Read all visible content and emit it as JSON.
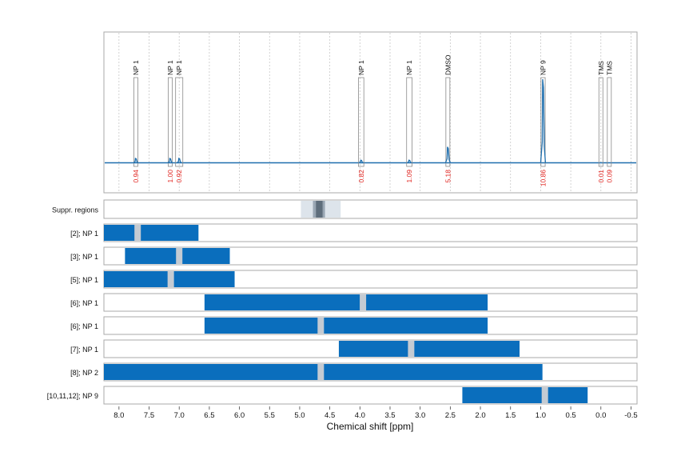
{
  "chart_data": {
    "type": "nmr_spectrum_with_regions",
    "xlabel": "Chemical shift [ppm]",
    "xlim": [
      8.25,
      -0.6
    ],
    "x_ticks": [
      "8.0",
      "7.5",
      "7.0",
      "6.5",
      "6.0",
      "5.5",
      "5.0",
      "4.5",
      "4.0",
      "3.5",
      "3.0",
      "2.5",
      "2.0",
      "1.5",
      "1.0",
      "0.5",
      "0.0",
      "-0.5"
    ],
    "x_tick_values": [
      8.0,
      7.5,
      7.0,
      6.5,
      6.0,
      5.5,
      5.0,
      4.5,
      4.0,
      3.5,
      3.0,
      2.5,
      2.0,
      1.5,
      1.0,
      0.5,
      0.0,
      -0.5
    ],
    "grid": true,
    "line_color": "#1f6fae",
    "integral_color": "#e0201b",
    "peaks": [
      {
        "label": "NP 1",
        "ppm": 7.72,
        "width": 0.06,
        "integral": "0.94",
        "height": 0.05
      },
      {
        "label": "NP 1",
        "ppm": 7.15,
        "width": 0.05,
        "integral": "1.00",
        "height": 0.05
      },
      {
        "label": "NP 1",
        "ppm": 7.0,
        "width": 0.12,
        "integral": "0.92",
        "height": 0.05
      },
      {
        "label": "NP 1",
        "ppm": 3.98,
        "width": 0.09,
        "integral": "0.82",
        "height": 0.03
      },
      {
        "label": "NP 1",
        "ppm": 3.18,
        "width": 0.09,
        "integral": "1.09",
        "height": 0.03
      },
      {
        "label": "DMSO",
        "ppm": 2.54,
        "width": 0.06,
        "integral": "5.18",
        "height": 0.18
      },
      {
        "label": "NP 9",
        "ppm": 0.96,
        "width": 0.07,
        "integral": "10.86",
        "height": 0.95
      },
      {
        "label": "TMS",
        "ppm": 0.0,
        "width": 0.03,
        "integral": "0.01",
        "height": 0.0
      },
      {
        "label": "TMS",
        "ppm": -0.14,
        "width": 0.03,
        "integral": "0.09",
        "height": 0.0
      }
    ],
    "suppression": {
      "label": "Suppr. regions",
      "outer": [
        4.98,
        4.32
      ],
      "inner": [
        4.78,
        4.58
      ],
      "core": [
        4.73,
        4.62
      ]
    },
    "rows": [
      {
        "label": "[2]; NP 1",
        "bar": [
          8.25,
          6.68
        ],
        "marks": [
          7.69
        ]
      },
      {
        "label": "[3]; NP 1",
        "bar": [
          7.9,
          6.16
        ],
        "marks": [
          7.0
        ]
      },
      {
        "label": "[5]; NP 1",
        "bar": [
          8.25,
          6.08
        ],
        "marks": [
          7.14
        ]
      },
      {
        "label": "[6]; NP 1",
        "bar": [
          6.58,
          1.88
        ],
        "marks": [
          3.95
        ]
      },
      {
        "label": "[6]; NP 1",
        "bar": [
          6.58,
          1.88
        ],
        "marks": [
          4.65
        ]
      },
      {
        "label": "[7]; NP 1",
        "bar": [
          4.35,
          1.35
        ],
        "marks": [
          3.15
        ]
      },
      {
        "label": "[8]; NP 2",
        "bar": [
          8.25,
          0.97
        ],
        "marks": [
          4.65
        ]
      },
      {
        "label": "[10,11,12]; NP 9",
        "bar": [
          2.3,
          0.22
        ],
        "marks": [
          0.93
        ]
      }
    ],
    "bar_color": "#0a6ebd",
    "mark_color": "#c4cbd3"
  }
}
